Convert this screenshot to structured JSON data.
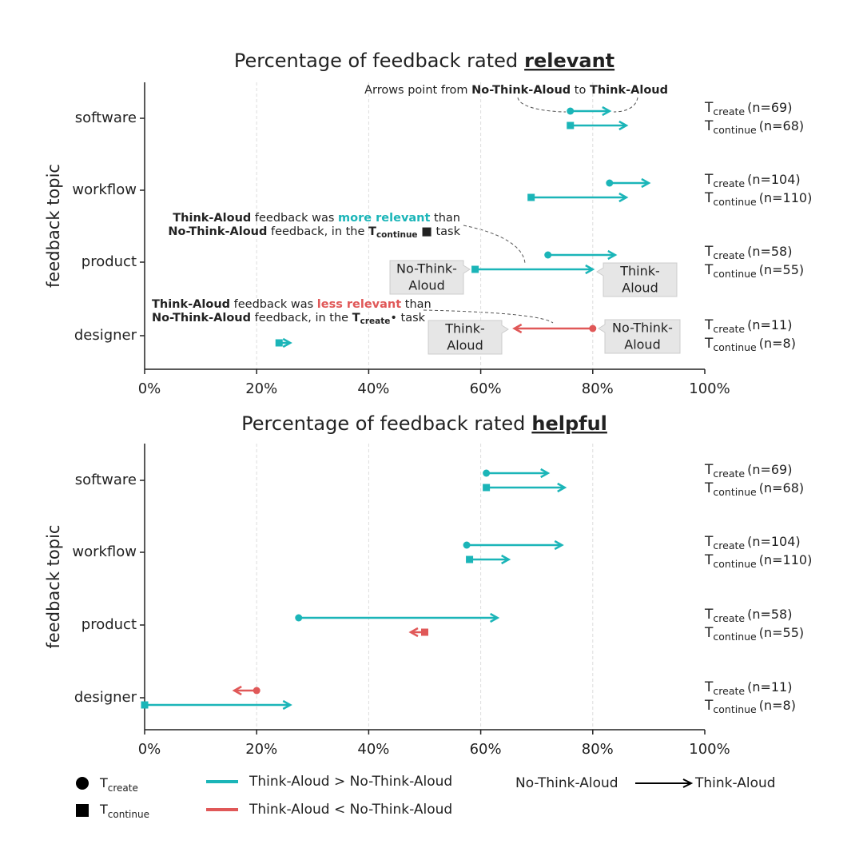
{
  "chart_data": [
    {
      "type": "arrow",
      "title": "Percentage of feedback rated",
      "title_emphasis": "relevant",
      "ylabel": "feedback topic",
      "categories": [
        "software",
        "workflow",
        "product",
        "designer"
      ],
      "xlim": [
        0,
        100
      ],
      "xticks": [
        {
          "value": 0,
          "label": "0%"
        },
        {
          "value": 20,
          "label": "20%"
        },
        {
          "value": 40,
          "label": "40%"
        },
        {
          "value": 60,
          "label": "60%"
        },
        {
          "value": 80,
          "label": "80%"
        },
        {
          "value": 100,
          "label": "100%"
        }
      ],
      "grid": true,
      "colors": {
        "increase": "#1bb5b8",
        "decrease": "#e05858"
      },
      "series": [
        {
          "name": "T",
          "subscript": "create",
          "marker": "circle",
          "from": [
            76,
            83,
            72,
            80
          ],
          "to": [
            83,
            90,
            84,
            66
          ],
          "n_labels": [
            "(n=69)",
            "(n=104)",
            "(n=58)",
            "(n=11)"
          ]
        },
        {
          "name": "T",
          "subscript": "continue",
          "marker": "square",
          "from": [
            76,
            69,
            59,
            24
          ],
          "to": [
            86,
            86,
            80,
            26
          ],
          "n_labels": [
            "(n=68)",
            "(n=110)",
            "(n=55)",
            "(n=8)"
          ]
        }
      ],
      "annotations": [
        {
          "lines": [
            [
              {
                "text": "Arrows point from "
              },
              {
                "text": "No-Think-Aloud",
                "bold": true
              },
              {
                "text": " to "
              },
              {
                "text": "Think-Aloud",
                "bold": true
              }
            ]
          ]
        },
        {
          "lines": [
            [
              {
                "text": "Think-Aloud",
                "bold": true
              },
              {
                "text": " feedback was "
              },
              {
                "text": "more relevant",
                "bold": true,
                "highlight": "increase"
              },
              {
                "text": " than"
              }
            ],
            [
              {
                "text": "No-Think-Aloud",
                "bold": true
              },
              {
                "text": " feedback, in the "
              },
              {
                "text": "T",
                "bold": true
              },
              {
                "text": "continue",
                "bold": true,
                "sub": true
              },
              {
                "text": " ■ task"
              }
            ]
          ]
        },
        {
          "lines": [
            [
              {
                "text": "Think-Aloud",
                "bold": true
              },
              {
                "text": " feedback was "
              },
              {
                "text": "less relevant",
                "bold": true,
                "highlight": "decrease"
              },
              {
                "text": " than"
              }
            ],
            [
              {
                "text": "No-Think-Aloud",
                "bold": true
              },
              {
                "text": " feedback, in the "
              },
              {
                "text": "T",
                "bold": true
              },
              {
                "text": "create",
                "bold": true,
                "sub": true
              },
              {
                "text": "•  task"
              }
            ]
          ]
        }
      ],
      "callouts": [
        {
          "lines": [
            "No-Think-",
            "Aloud"
          ]
        },
        {
          "lines": [
            "Think-",
            "Aloud"
          ]
        },
        {
          "lines": [
            "Think-",
            "Aloud"
          ]
        },
        {
          "lines": [
            "No-Think-",
            "Aloud"
          ]
        }
      ]
    },
    {
      "type": "arrow",
      "title": "Percentage of feedback rated",
      "title_emphasis": "helpful",
      "ylabel": "feedback topic",
      "categories": [
        "software",
        "workflow",
        "product",
        "designer"
      ],
      "xlim": [
        0,
        100
      ],
      "xticks": [
        {
          "value": 0,
          "label": "0%"
        },
        {
          "value": 20,
          "label": "20%"
        },
        {
          "value": 40,
          "label": "40%"
        },
        {
          "value": 60,
          "label": "60%"
        },
        {
          "value": 80,
          "label": "80%"
        },
        {
          "value": 100,
          "label": "100%"
        }
      ],
      "grid": true,
      "colors": {
        "increase": "#1bb5b8",
        "decrease": "#e05858"
      },
      "series": [
        {
          "name": "T",
          "subscript": "create",
          "marker": "circle",
          "from": [
            61,
            57.5,
            27.5,
            20
          ],
          "to": [
            72,
            74.5,
            63,
            16
          ],
          "n_labels": [
            "(n=69)",
            "(n=104)",
            "(n=58)",
            "(n=11)"
          ]
        },
        {
          "name": "T",
          "subscript": "continue",
          "marker": "square",
          "from": [
            61,
            58,
            50,
            0
          ],
          "to": [
            75,
            65,
            47.5,
            26
          ],
          "n_labels": [
            "(n=68)",
            "(n=110)",
            "(n=55)",
            "(n=8)"
          ]
        }
      ]
    }
  ],
  "legend": {
    "increase": "Think-Aloud > No-Think-Aloud",
    "decrease": "Think-Aloud < No-Think-Aloud",
    "arrow_from": "No-Think-Aloud",
    "arrow_to": "Think-Aloud"
  }
}
